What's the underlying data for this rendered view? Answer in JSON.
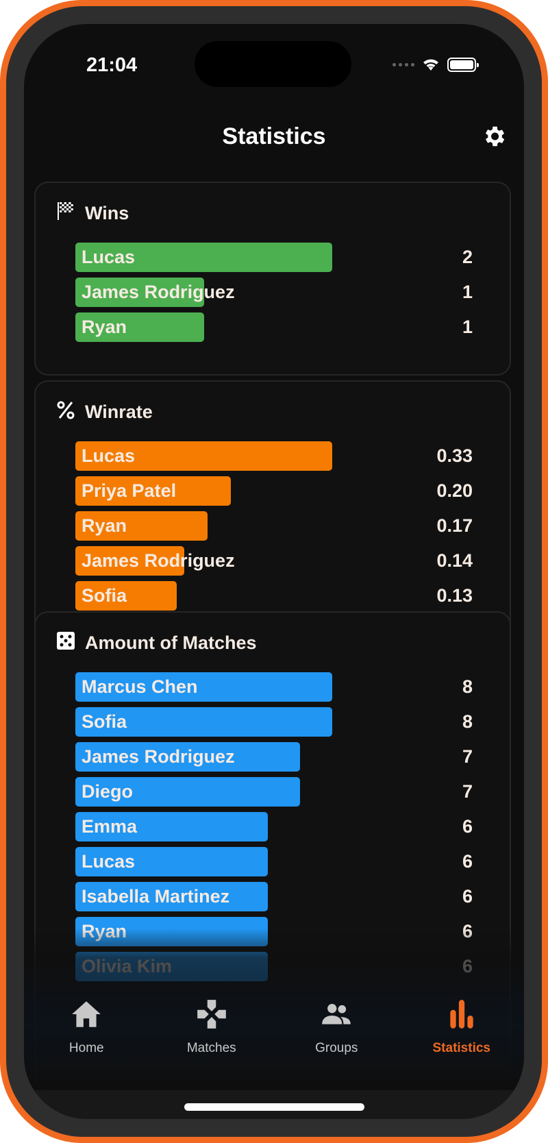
{
  "status_bar": {
    "time": "21:04"
  },
  "header": {
    "title": "Statistics",
    "settings_icon": "gear-icon"
  },
  "colors": {
    "accent": "#f06a21",
    "wins": "#4caf50",
    "winrate": "#f57c00",
    "matches": "#2196f3"
  },
  "cards": [
    {
      "title": "Wins",
      "icon": "checkered-flag-icon",
      "color": "#4caf50",
      "max": 2,
      "rows": [
        {
          "name": "Lucas",
          "value": "2",
          "num": 2
        },
        {
          "name": "James Rodriguez",
          "value": "1",
          "num": 1
        },
        {
          "name": "Ryan",
          "value": "1",
          "num": 1
        }
      ]
    },
    {
      "title": "Winrate",
      "icon": "percent-icon",
      "color": "#f57c00",
      "max": 0.33,
      "rows": [
        {
          "name": "Lucas",
          "value": "0.33",
          "num": 0.33
        },
        {
          "name": "Priya Patel",
          "value": "0.20",
          "num": 0.2
        },
        {
          "name": "Ryan",
          "value": "0.17",
          "num": 0.17
        },
        {
          "name": "James Rodriguez",
          "value": "0.14",
          "num": 0.14
        },
        {
          "name": "Sofia",
          "value": "0.13",
          "num": 0.13
        }
      ]
    },
    {
      "title": "Amount of Matches",
      "icon": "dice-icon",
      "color": "#2196f3",
      "max": 8,
      "rows": [
        {
          "name": "Marcus Chen",
          "value": "8",
          "num": 8
        },
        {
          "name": "Sofia",
          "value": "8",
          "num": 8
        },
        {
          "name": "James Rodriguez",
          "value": "7",
          "num": 7
        },
        {
          "name": "Diego",
          "value": "7",
          "num": 7
        },
        {
          "name": "Emma",
          "value": "6",
          "num": 6
        },
        {
          "name": "Lucas",
          "value": "6",
          "num": 6
        },
        {
          "name": "Isabella Martinez",
          "value": "6",
          "num": 6
        },
        {
          "name": "Ryan",
          "value": "6",
          "num": 6
        },
        {
          "name": "Olivia Kim",
          "value": "6",
          "num": 6
        }
      ]
    }
  ],
  "tabs": [
    {
      "label": "Home",
      "icon": "home-icon",
      "active": false
    },
    {
      "label": "Matches",
      "icon": "gamepad-icon",
      "active": false
    },
    {
      "label": "Groups",
      "icon": "groups-icon",
      "active": false
    },
    {
      "label": "Statistics",
      "icon": "bar-chart-icon",
      "active": true
    }
  ]
}
